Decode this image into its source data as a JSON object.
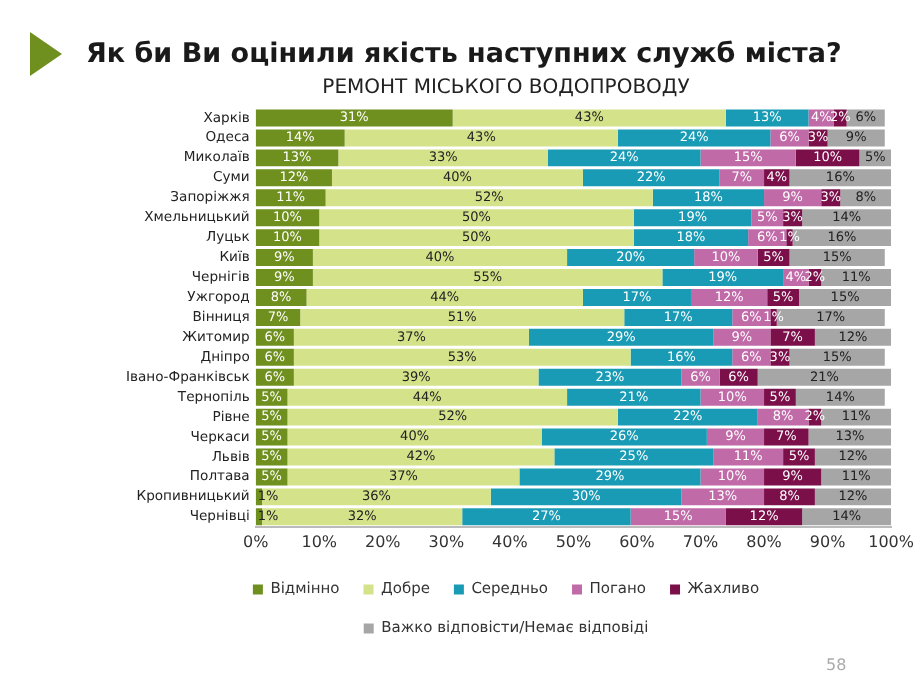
{
  "chart_data": {
    "type": "bar",
    "orientation": "horizontal",
    "stacked": true,
    "title": "Як би Ви оцінили якість наступних служб міста?",
    "subtitle": "РЕМОНТ МІСЬКОГО ВОДОПРОВОДУ",
    "categories": [
      "Харків",
      "Одеса",
      "Миколаїв",
      "Суми",
      "Запоріжжя",
      "Хмельницький",
      "Луцьк",
      "Київ",
      "Чернігів",
      "Ужгород",
      "Вінниця",
      "Житомир",
      "Дніпро",
      "Івано-Франківськ",
      "Тернопіль",
      "Рівне",
      "Черкаси",
      "Львів",
      "Полтава",
      "Кропивницький",
      "Чернівці"
    ],
    "series": [
      {
        "name": "Відмінно",
        "color": "#6f8f1e",
        "values": [
          31,
          14,
          13,
          12,
          11,
          10,
          10,
          9,
          9,
          8,
          7,
          6,
          6,
          6,
          5,
          5,
          5,
          5,
          5,
          1,
          1
        ],
        "value_labels": [
          "31%",
          "14%",
          "13%",
          "12%",
          "11%",
          "10%",
          "10%",
          "9%",
          "9%",
          "8%",
          "7%",
          "6%",
          "6%",
          "6%",
          "5%",
          "5%",
          "5%",
          "5%",
          "5%",
          "1%",
          "1%"
        ]
      },
      {
        "name": "Добре",
        "color": "#d4e38a",
        "values": [
          43,
          43,
          33,
          39.5,
          51.5,
          49.5,
          49.5,
          40,
          55,
          43.5,
          51,
          37,
          53,
          38.5,
          44,
          52,
          40,
          42,
          36.5,
          36,
          31.5
        ],
        "value_labels": [
          "43%",
          "43%",
          "33%",
          "40%",
          "52%",
          "50%",
          "50%",
          "40%",
          "55%",
          "44%",
          "51%",
          "37%",
          "53%",
          "39%",
          "44%",
          "52%",
          "40%",
          "42%",
          "37%",
          "36%",
          "32%"
        ]
      },
      {
        "name": "Середньо",
        "color": "#1a9bb5",
        "values": [
          13,
          24,
          24,
          21.5,
          17.5,
          18.5,
          18,
          20,
          19,
          17,
          17,
          29,
          16,
          22.5,
          21,
          22,
          26,
          25,
          28.5,
          30,
          26.5
        ],
        "value_labels": [
          "13%",
          "24%",
          "24%",
          "22%",
          "18%",
          "19%",
          "18%",
          "20%",
          "19%",
          "17%",
          "17%",
          "29%",
          "16%",
          "23%",
          "21%",
          "22%",
          "26%",
          "25%",
          "29%",
          "30%",
          "27%"
        ]
      },
      {
        "name": "Погано",
        "color": "#c06aa8",
        "values": [
          4,
          6,
          15,
          7,
          9,
          5,
          6,
          10,
          4,
          12,
          6,
          9,
          6,
          6,
          10,
          8,
          9,
          11,
          10,
          13,
          15
        ],
        "value_labels": [
          "4%",
          "6%",
          "15%",
          "7%",
          "9%",
          "5%",
          "6%",
          "10%",
          "4%",
          "12%",
          "6%",
          "9%",
          "6%",
          "6%",
          "10%",
          "8%",
          "9%",
          "11%",
          "10%",
          "13%",
          "15%"
        ]
      },
      {
        "name": "Жахливо",
        "color": "#7a0f4a",
        "values": [
          2,
          3,
          10,
          4,
          3,
          3,
          1,
          5,
          2,
          5,
          1,
          7,
          3,
          6,
          5,
          2,
          7,
          5,
          9,
          8,
          12
        ],
        "value_labels": [
          "2%",
          "3%",
          "10%",
          "4%",
          "3%",
          "3%",
          "1%",
          "5%",
          "2%",
          "5%",
          "1%",
          "7%",
          "3%",
          "6%",
          "5%",
          "2%",
          "7%",
          "5%",
          "9%",
          "8%",
          "12%"
        ]
      },
      {
        "name": "Важко відповісти/Немає відповіді",
        "color": "#a6a6a6",
        "values": [
          6,
          9,
          5,
          16,
          8,
          14,
          15.5,
          15,
          11,
          14.5,
          17,
          12,
          15,
          21,
          14,
          11,
          13,
          12,
          11,
          12,
          14
        ],
        "value_labels": [
          "6%",
          "9%",
          "5%",
          "16%",
          "8%",
          "14%",
          "16%",
          "15%",
          "11%",
          "15%",
          "17%",
          "12%",
          "15%",
          "21%",
          "14%",
          "11%",
          "13%",
          "12%",
          "11%",
          "12%",
          "14%"
        ]
      }
    ],
    "xlim": [
      0,
      100
    ],
    "xticks": [
      {
        "value": 0,
        "label": "0%"
      },
      {
        "value": 10,
        "label": "10%"
      },
      {
        "value": 20,
        "label": "20%"
      },
      {
        "value": 30,
        "label": "30%"
      },
      {
        "value": 40,
        "label": "40%"
      },
      {
        "value": 50,
        "label": "50%"
      },
      {
        "value": 60,
        "label": "60%"
      },
      {
        "value": 70,
        "label": "70%"
      },
      {
        "value": 80,
        "label": "80%"
      },
      {
        "value": 90,
        "label": "90%"
      },
      {
        "value": 100,
        "label": "100%"
      }
    ],
    "grid": false,
    "legend": "bottom",
    "annotations": [
      "58"
    ]
  }
}
